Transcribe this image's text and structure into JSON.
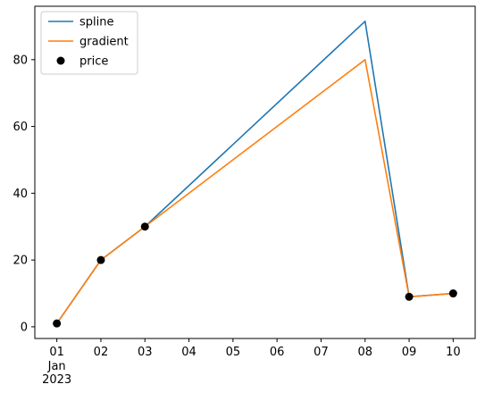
{
  "chart_data": {
    "type": "line",
    "x_labels": [
      "01",
      "02",
      "03",
      "04",
      "05",
      "06",
      "07",
      "08",
      "09",
      "10"
    ],
    "x_sublabels": [
      "Jan",
      "2023"
    ],
    "y_ticks": [
      0,
      20,
      40,
      60,
      80
    ],
    "xlim": [
      "2022-12-31T12:00",
      "2023-01-10T12:00"
    ],
    "ylim": [
      -3.5,
      96
    ],
    "grid": false,
    "legend_position": "top-left",
    "series": [
      {
        "name": "spline",
        "type": "line",
        "color": "#1f77b4",
        "x": [
          "2023-01-01",
          "2023-01-02",
          "2023-01-03",
          "2023-01-08",
          "2023-01-09",
          "2023-01-10"
        ],
        "values": [
          1,
          20,
          30,
          91.5,
          9,
          10
        ]
      },
      {
        "name": "gradient",
        "type": "line",
        "color": "#ff7f0e",
        "x": [
          "2023-01-01",
          "2023-01-02",
          "2023-01-03",
          "2023-01-08",
          "2023-01-09",
          "2023-01-10"
        ],
        "values": [
          1,
          20,
          30,
          80,
          9,
          10
        ]
      },
      {
        "name": "price",
        "type": "scatter",
        "color": "#000000",
        "x": [
          "2023-01-01",
          "2023-01-02",
          "2023-01-03",
          "2023-01-09",
          "2023-01-10"
        ],
        "values": [
          1,
          20,
          30,
          9,
          10
        ]
      }
    ]
  }
}
